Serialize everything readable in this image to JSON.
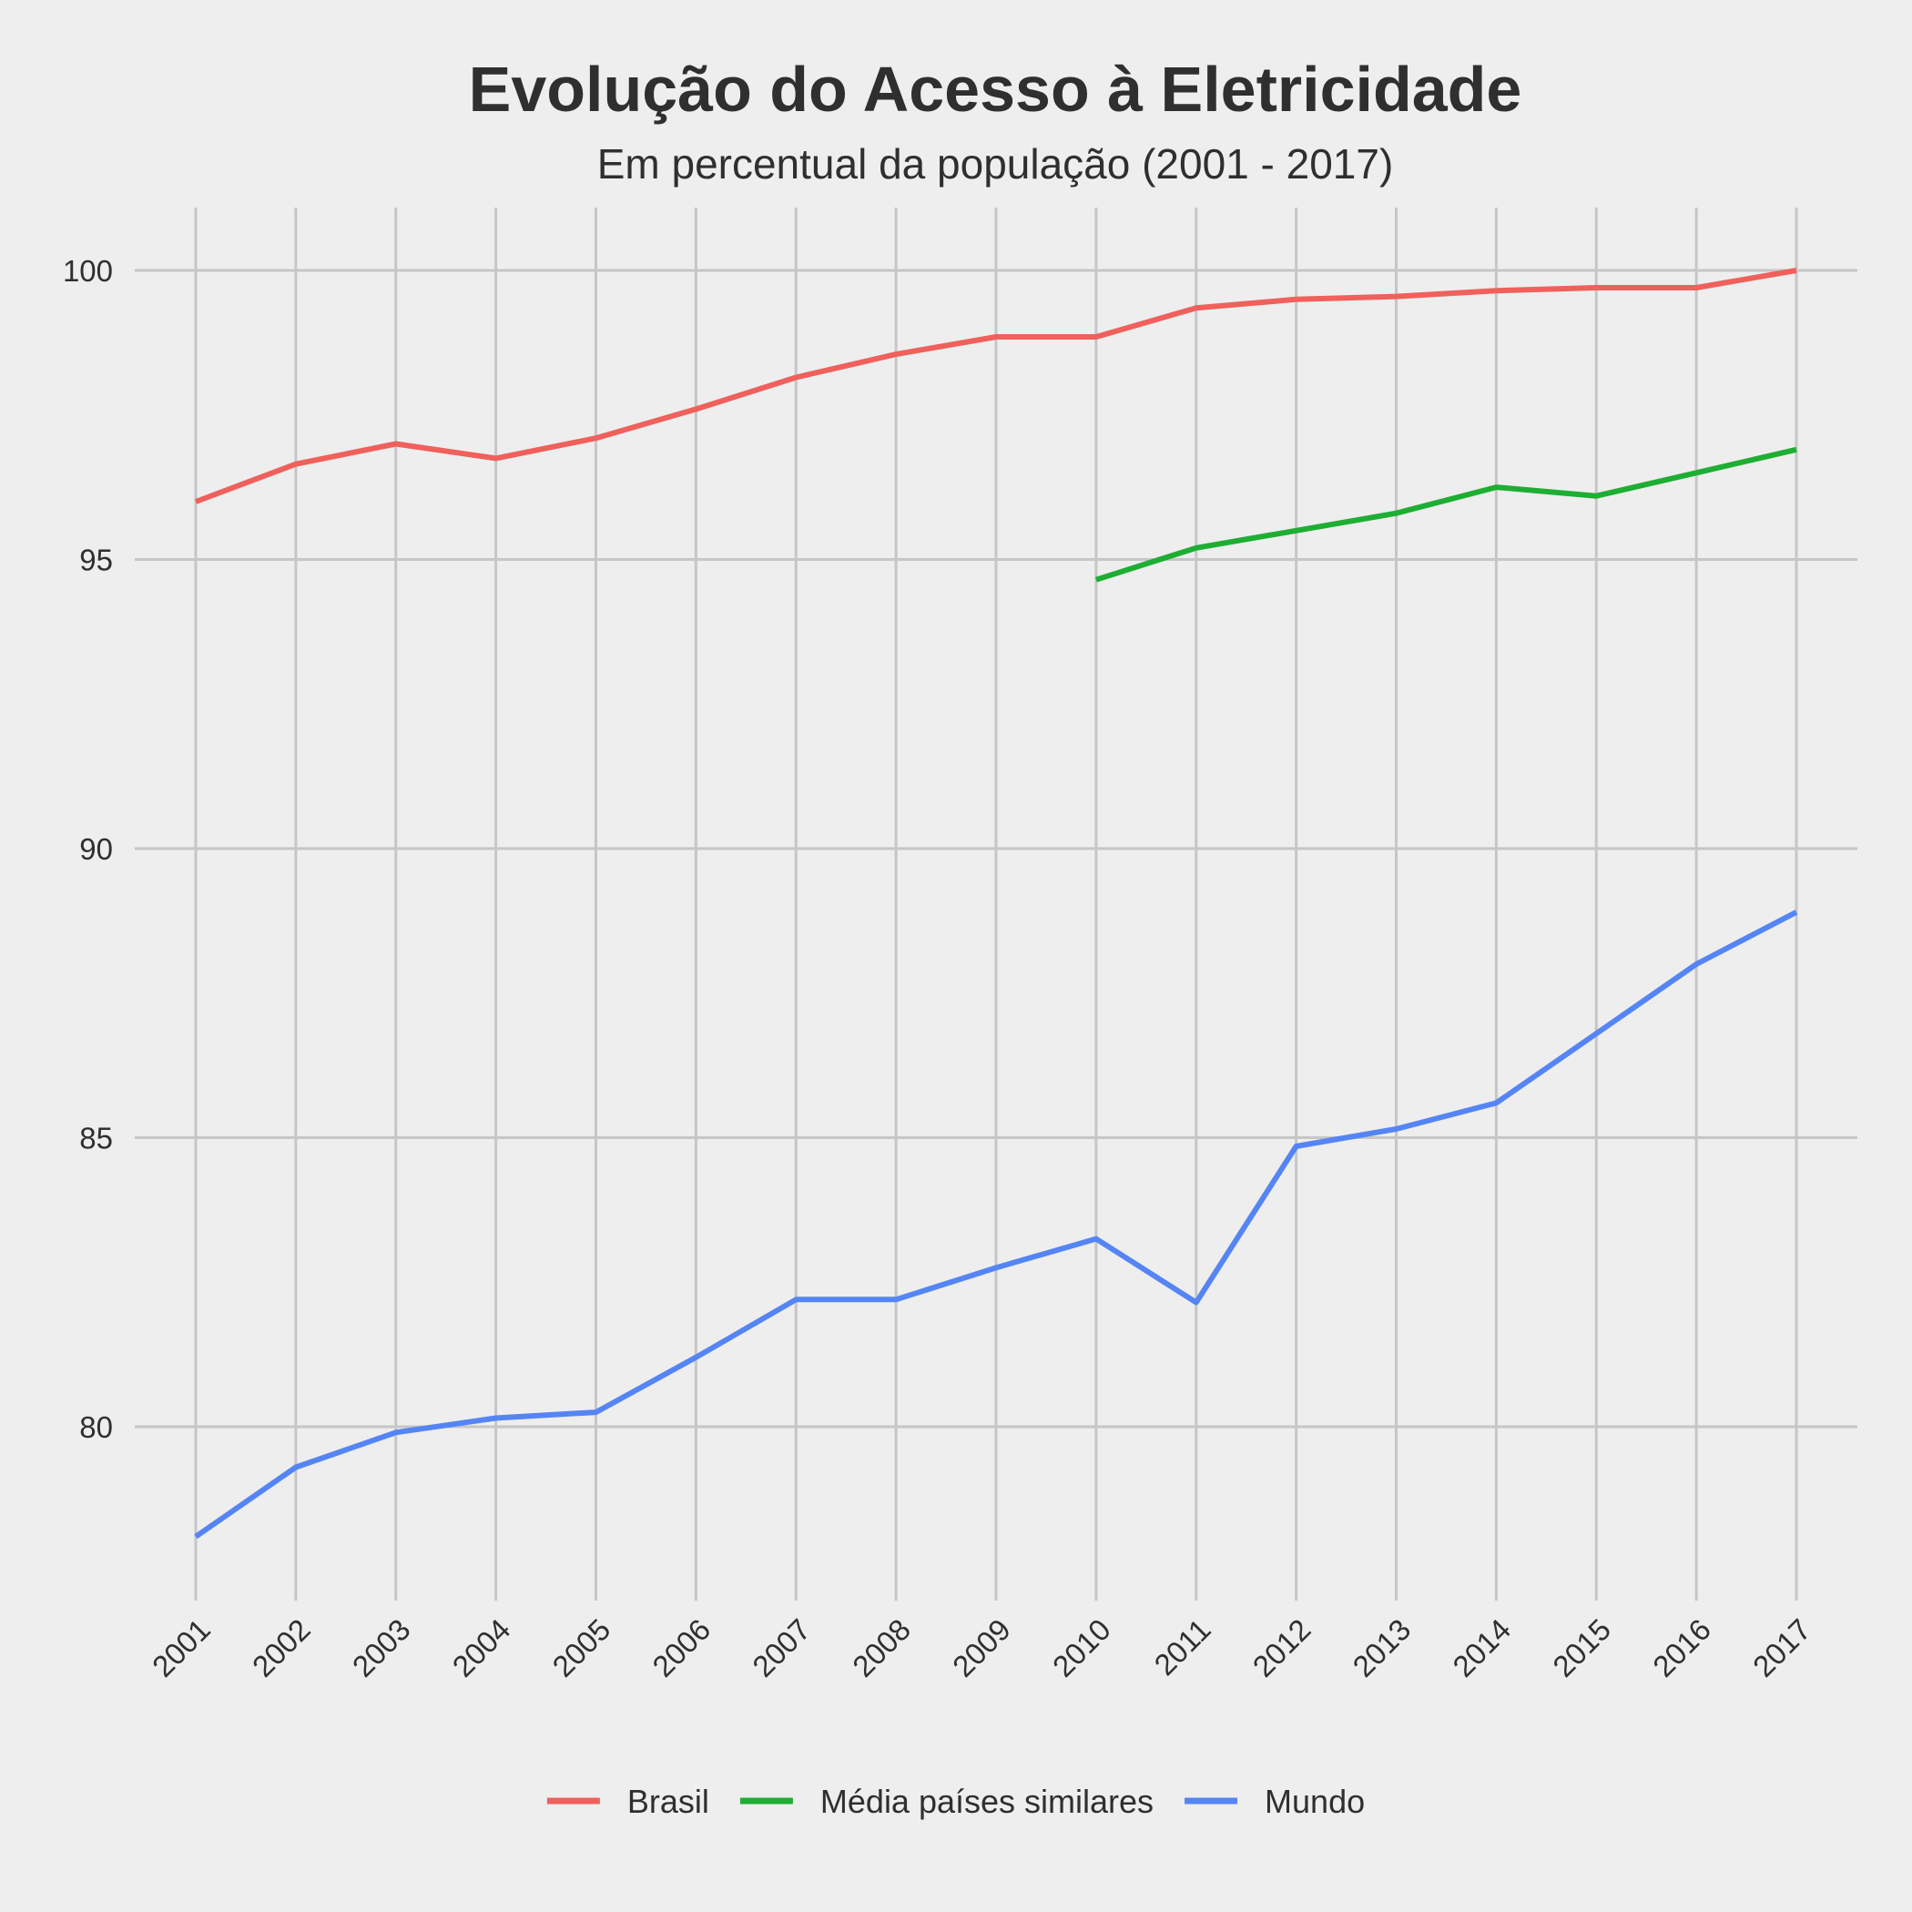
{
  "chart_data": {
    "type": "line",
    "title": "Evolução do Acesso à Eletricidade",
    "subtitle": "Em percentual da população (2001 - 2017)",
    "xlabel": "",
    "ylabel": "",
    "x": [
      "2001",
      "2002",
      "2003",
      "2004",
      "2005",
      "2006",
      "2007",
      "2008",
      "2009",
      "2010",
      "2011",
      "2012",
      "2013",
      "2014",
      "2015",
      "2016",
      "2017"
    ],
    "y_ticks": [
      80,
      85,
      90,
      95,
      100
    ],
    "ylim": [
      77.5,
      101.1
    ],
    "grid": true,
    "legend_position": "bottom",
    "series": [
      {
        "name": "Brasil",
        "color": "#f0605c",
        "values": [
          96.0,
          96.65,
          97.0,
          96.75,
          97.1,
          97.6,
          98.15,
          98.55,
          98.85,
          98.85,
          99.35,
          99.5,
          99.55,
          99.65,
          99.7,
          99.7,
          100.0
        ]
      },
      {
        "name": "Média países similares",
        "color": "#1eae33",
        "values": [
          null,
          null,
          null,
          null,
          null,
          null,
          null,
          null,
          null,
          94.65,
          95.2,
          95.5,
          95.8,
          96.25,
          96.1,
          96.5,
          96.9
        ]
      },
      {
        "name": "Mundo",
        "color": "#5585f5",
        "values": [
          78.1,
          79.3,
          79.9,
          80.15,
          80.25,
          81.2,
          82.2,
          82.2,
          82.75,
          83.25,
          82.15,
          84.85,
          85.15,
          85.6,
          86.8,
          88.0,
          88.9
        ]
      }
    ]
  }
}
